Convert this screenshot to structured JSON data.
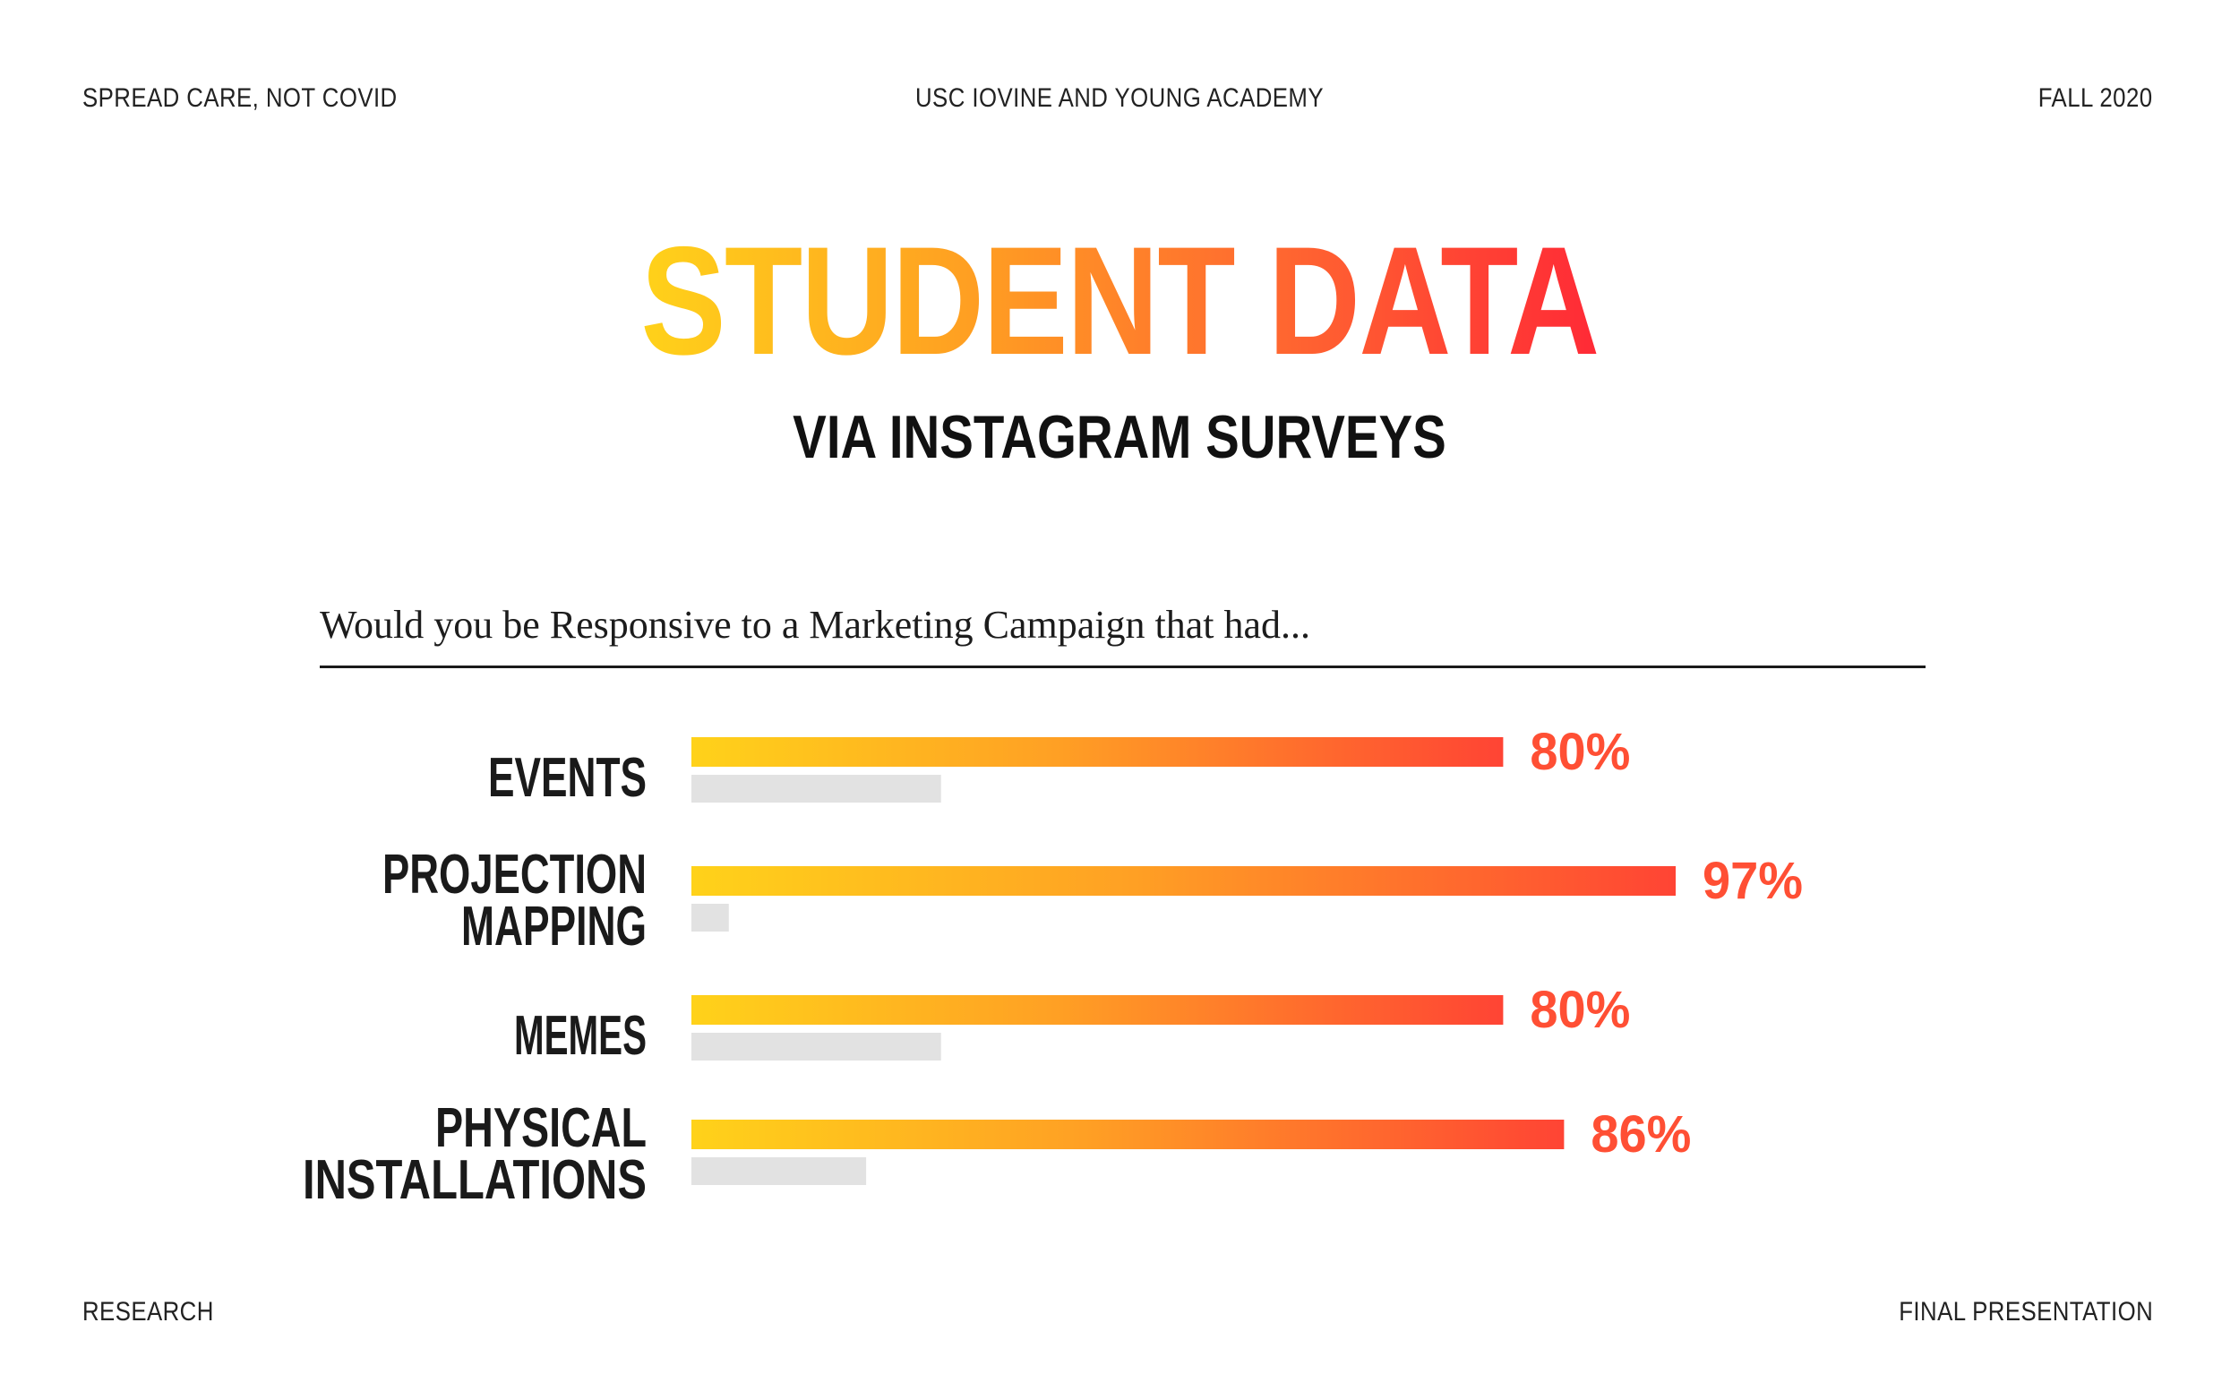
{
  "header": {
    "left": "SPREAD CARE, NOT COVID",
    "center": "USC IOVINE AND YOUNG ACADEMY",
    "right": "FALL 2020"
  },
  "footer": {
    "left": "RESEARCH",
    "right": "FINAL PRESENTATION"
  },
  "title": "STUDENT DATA",
  "subtitle": "VIA INSTAGRAM SURVEYS",
  "colors": {
    "gradient_start": "#ffd21a",
    "gradient_end": "#ff4434",
    "value_label": "#ff4f34",
    "secondary_bar": "#e2e2e2"
  },
  "chart_data": {
    "type": "bar",
    "orientation": "horizontal",
    "question": "Would you be Responsive to a Marketing Campaign that had...",
    "categories": [
      [
        "EVENTS"
      ],
      [
        "PROJECTION",
        "MAPPING"
      ],
      [
        "MEMES"
      ],
      [
        "PHYSICAL",
        "INSTALLATIONS"
      ]
    ],
    "values": [
      80,
      97,
      80,
      86
    ],
    "value_labels": [
      "80%",
      "97%",
      "80%",
      "86%"
    ],
    "complement_values": [
      20,
      3,
      20,
      14
    ],
    "xlim": [
      0,
      100
    ],
    "grid": false
  }
}
